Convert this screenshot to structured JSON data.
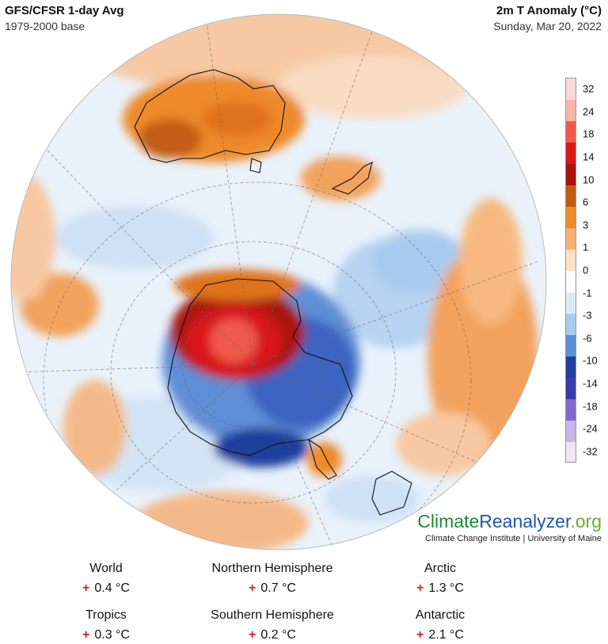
{
  "header": {
    "title": "GFS/CFSR 1-day Avg",
    "base": "1979-2000 base",
    "variable": "2m T Anomaly (°C)",
    "date": "Sunday, Mar 20, 2022"
  },
  "legend": {
    "labels": [
      "32",
      "24",
      "18",
      "14",
      "10",
      "6",
      "3",
      "1",
      "0",
      "-1",
      "-3",
      "-6",
      "-10",
      "-14",
      "-18",
      "-24",
      "-32"
    ],
    "colors": [
      "#f8d9d6",
      "#f7b6a6",
      "#f05a4b",
      "#d9181c",
      "#a8120f",
      "#c25b12",
      "#ee8a2b",
      "#f5b273",
      "#fbe1c6",
      "#ffffff",
      "#dceaf8",
      "#a8cbef",
      "#5e8fd6",
      "#1e3f9c",
      "#3b3caa",
      "#7d6bc7",
      "#c8b6e6",
      "#f4e3f4"
    ]
  },
  "brand": {
    "part1": "Climate",
    "part2": "Reanalyzer",
    "part3": ".org",
    "subtitle": "Climate Change Institute | University of Maine"
  },
  "stats": [
    {
      "label": "World",
      "sign": "+",
      "value": "0.4 °C"
    },
    {
      "label": "Northern Hemisphere",
      "sign": "+",
      "value": "0.7 °C"
    },
    {
      "label": "Arctic",
      "sign": "+",
      "value": "1.3 °C"
    },
    {
      "label": "Tropics",
      "sign": "+",
      "value": "0.3 °C"
    },
    {
      "label": "Southern Hemisphere",
      "sign": "+",
      "value": "0.2 °C"
    },
    {
      "label": "Antarctic",
      "sign": "+",
      "value": "2.1 °C"
    }
  ]
}
